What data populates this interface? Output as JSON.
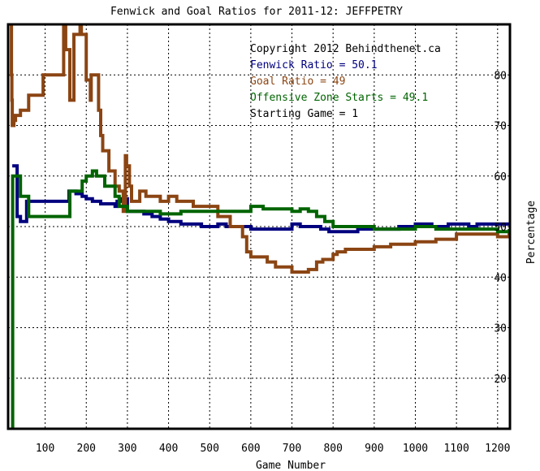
{
  "chart_data": {
    "type": "line",
    "title": "Fenwick and Goal Ratios for 2011-12: JEFFPETRY",
    "xlabel": "Game Number",
    "ylabel": "Percentage",
    "xlim": [
      10,
      1230
    ],
    "ylim": [
      10,
      90
    ],
    "x_ticks": [
      100,
      200,
      300,
      400,
      500,
      600,
      700,
      800,
      900,
      1000,
      1100,
      1200
    ],
    "y_ticks": [
      20,
      30,
      40,
      50,
      60,
      70,
      80
    ],
    "grid": true,
    "legend_lines": [
      {
        "text": "Copyright 2012 Behindthenet.ca",
        "color": "#000000"
      },
      {
        "text": "Fenwick Ratio = 50.1",
        "color": "#00007f"
      },
      {
        "text": "Goal Ratio = 49",
        "color": "#8b4513"
      },
      {
        "text": "Offensive Zone Starts = 49.1",
        "color": "#006400"
      },
      {
        "text": "Starting Game = 1",
        "color": "#000000"
      }
    ],
    "series": [
      {
        "name": "Fenwick Ratio",
        "color": "#00007f",
        "x": [
          20,
          25,
          32,
          40,
          55,
          60,
          78,
          90,
          110,
          150,
          158,
          168,
          175,
          190,
          200,
          215,
          235,
          270,
          275,
          285,
          300,
          310,
          340,
          360,
          380,
          400,
          430,
          460,
          480,
          500,
          520,
          540,
          560,
          600,
          640,
          690,
          700,
          720,
          750,
          770,
          790,
          800,
          820,
          860,
          900,
          960,
          980,
          1000,
          1040,
          1060,
          1080,
          1100,
          1130,
          1150,
          1200,
          1228
        ],
        "y": [
          62,
          62,
          52,
          51,
          55,
          55,
          55,
          55,
          55,
          55,
          57,
          57,
          56.5,
          56,
          55.5,
          55,
          54.5,
          54,
          55,
          55.5,
          53,
          53,
          52.5,
          52,
          51.5,
          51,
          50.5,
          50.5,
          50,
          50,
          50.5,
          50,
          50,
          49.5,
          49.5,
          49.5,
          50.5,
          50,
          50,
          49.5,
          49,
          49,
          49,
          49.5,
          49.5,
          50,
          50,
          50.5,
          50,
          50,
          50.5,
          50.5,
          50,
          50.5,
          50.5,
          50.5
        ]
      },
      {
        "name": "Goal Ratio",
        "color": "#8b4513",
        "x": [
          14,
          16,
          18,
          19,
          20,
          24,
          28,
          40,
          60,
          95,
          145,
          150,
          160,
          165,
          170,
          178,
          185,
          188,
          200,
          210,
          212,
          218,
          230,
          235,
          240,
          255,
          270,
          280,
          290,
          295,
          298,
          305,
          310,
          330,
          345,
          380,
          400,
          420,
          460,
          500,
          520,
          550,
          580,
          590,
          600,
          640,
          660,
          700,
          740,
          760,
          775,
          800,
          810,
          830,
          860,
          900,
          940,
          1000,
          1050,
          1100,
          1150,
          1200,
          1228
        ],
        "y": [
          90,
          90,
          80,
          75,
          70,
          71,
          72,
          73,
          76,
          80,
          90,
          85,
          75,
          75,
          88,
          88,
          90,
          88,
          79,
          75,
          80,
          80,
          73,
          68,
          65,
          61,
          58,
          57,
          53,
          64,
          62,
          58,
          55,
          57,
          56,
          55,
          56,
          55,
          54,
          54,
          52,
          50,
          48,
          45,
          44,
          43,
          42,
          41,
          41.5,
          43,
          43.5,
          44.5,
          45,
          45.5,
          45.5,
          46,
          46.5,
          47,
          47.5,
          48.5,
          48.5,
          48,
          49
        ]
      },
      {
        "name": "Offensive Zone Starts",
        "color": "#006400",
        "x": [
          20,
          21,
          22,
          35,
          40,
          50,
          60,
          80,
          100,
          120,
          150,
          160,
          175,
          190,
          200,
          215,
          225,
          245,
          270,
          280,
          300,
          320,
          340,
          360,
          380,
          400,
          430,
          460,
          500,
          540,
          570,
          600,
          630,
          660,
          700,
          720,
          740,
          760,
          780,
          800,
          840,
          900,
          950,
          1000,
          1050,
          1100,
          1150,
          1200,
          1228
        ],
        "y": [
          10,
          60,
          60,
          60,
          56,
          56,
          52,
          52,
          52,
          52,
          52,
          57,
          57,
          59,
          60,
          61,
          60,
          58,
          56,
          54,
          53,
          53,
          53,
          53,
          52.5,
          52.5,
          53,
          53,
          53,
          53,
          53,
          54,
          53.5,
          53.5,
          53,
          53.5,
          53,
          52,
          51,
          50,
          50,
          49.5,
          49.5,
          50,
          49.5,
          49.5,
          49.5,
          49,
          49.5
        ]
      }
    ]
  }
}
